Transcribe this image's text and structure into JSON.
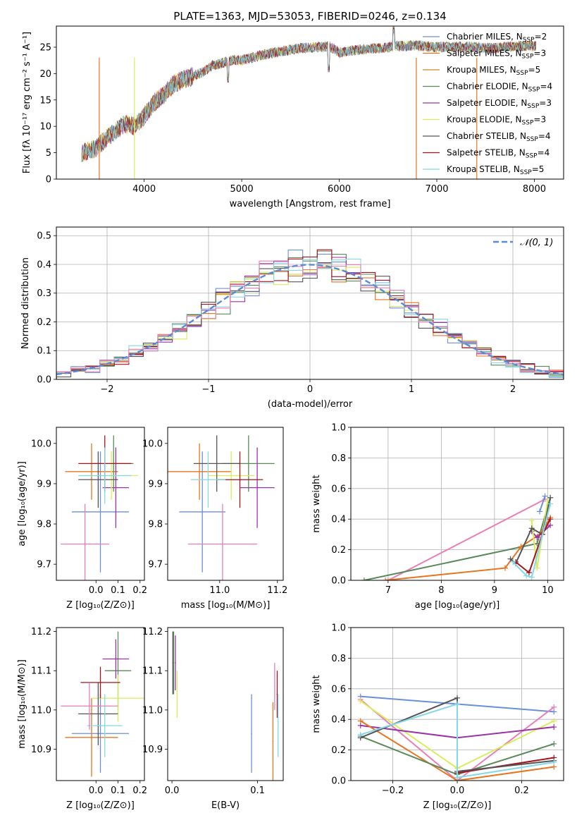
{
  "figure": {
    "title": "PLATE=1363, MJD=53053, FIBERID=0246, z=0.134"
  },
  "colors": {
    "Chabrier MILES": "#6a8fdb",
    "Salpeter MILES": "#e8741e",
    "Kroupa MILES": "#c98a2a",
    "Chabrier ELODIE": "#5a8a5a",
    "Salpeter ELODIE": "#9a35a8",
    "Kroupa ELODIE": "#d9ec5a",
    "Chabrier STELIB": "#555555",
    "Salpeter STELIB": "#a5141d",
    "Kroupa STELIB": "#84d8e6",
    "pink_series": "#e87fb8",
    "gaussian": "#5b8bd6"
  },
  "chart_data": [
    {
      "id": "spectrum",
      "type": "line",
      "title": "PLATE=1363, MJD=53053, FIBERID=0246, z=0.134",
      "xlabel": "wavelength [Angstrom, rest frame]",
      "ylabel": "Flux [fλ 10⁻¹⁷ erg cm⁻² s⁻¹ A⁻¹]",
      "xlim": [
        3100,
        8300
      ],
      "ylim": [
        0,
        29
      ],
      "xticks": [
        4000,
        5000,
        6000,
        7000,
        8000
      ],
      "yticks": [
        0,
        5,
        10,
        15,
        20,
        25
      ],
      "legend_position": "top-right",
      "continuum": {
        "x": [
          3360,
          3500,
          3600,
          3700,
          3800,
          3900,
          4000,
          4100,
          4200,
          4300,
          4400,
          4500,
          4600,
          4700,
          4800,
          4900,
          5000,
          5200,
          5400,
          5600,
          5800,
          5900,
          6000,
          6200,
          6400,
          6600,
          6800,
          7000,
          7200,
          7400,
          7600,
          7800,
          8000
        ],
        "y": [
          5.0,
          5.8,
          7.5,
          9.0,
          10.5,
          10.0,
          12.0,
          14.5,
          16.0,
          18.0,
          18.8,
          19.5,
          20.3,
          21.5,
          22.0,
          22.5,
          22.5,
          23.5,
          24.2,
          24.8,
          25.0,
          25.2,
          24.0,
          24.5,
          24.8,
          25.2,
          25.3,
          25.0,
          25.1,
          25.0,
          24.8,
          25.2,
          25.2
        ]
      },
      "series": [
        {
          "name": "Chabrier MILES, N_SSP=2",
          "label_main": "Chabrier MILES, N",
          "label_sub": "SSP",
          "label_end": "=2",
          "color": "#6a8fdb"
        },
        {
          "name": "Salpeter MILES, N_SSP=3",
          "label_main": "Salpeter MILES, N",
          "label_sub": "SSP",
          "label_end": "=3",
          "color": "#e8741e"
        },
        {
          "name": "Kroupa MILES, N_SSP=5",
          "label_main": "Kroupa MILES, N",
          "label_sub": "SSP",
          "label_end": "=5",
          "color": "#c98a2a"
        },
        {
          "name": "Chabrier ELODIE, N_SSP=4",
          "label_main": "Chabrier ELODIE, N",
          "label_sub": "SSP",
          "label_end": "=4",
          "color": "#5a8a5a"
        },
        {
          "name": "Salpeter ELODIE, N_SSP=3",
          "label_main": "Salpeter ELODIE, N",
          "label_sub": "SSP",
          "label_end": "=3",
          "color": "#9a35a8"
        },
        {
          "name": "Kroupa ELODIE, N_SSP=3",
          "label_main": "Kroupa ELODIE, N",
          "label_sub": "SSP",
          "label_end": "=3",
          "color": "#d9ec5a"
        },
        {
          "name": "Chabrier STELIB, N_SSP=4",
          "label_main": "Chabrier STELIB, N",
          "label_sub": "SSP",
          "label_end": "=4",
          "color": "#555555"
        },
        {
          "name": "Salpeter STELIB, N_SSP=4",
          "label_main": "Salpeter STELIB, N",
          "label_sub": "SSP",
          "label_end": "=4",
          "color": "#a5141d"
        },
        {
          "name": "Kroupa STELIB, N_SSP=5",
          "label_main": "Kroupa STELIB, N",
          "label_sub": "SSP",
          "label_end": "=5",
          "color": "#84d8e6"
        }
      ],
      "range_edges": [
        {
          "name": "Salpeter MILES",
          "x": 3540,
          "color": "#e8741e"
        },
        {
          "name": "Kroupa ELODIE",
          "x": 3900,
          "color": "#d9ec5a"
        },
        {
          "name": "Salpeter MILES",
          "x": 6790,
          "color": "#e8741e"
        },
        {
          "name": "Salpeter MILES",
          "x": 7410,
          "color": "#e8741e"
        }
      ]
    },
    {
      "id": "residuals",
      "type": "histogram",
      "xlabel": "(data-model)/error",
      "ylabel": "Normed distribution",
      "xlim": [
        -2.5,
        2.5
      ],
      "ylim": [
        0,
        0.53
      ],
      "xticks": [
        -2,
        -1,
        0,
        1,
        2
      ],
      "yticks": [
        0.0,
        0.1,
        0.2,
        0.3,
        0.4,
        0.5
      ],
      "grid": true,
      "legend_position": "top-right",
      "legend_label": "𝒩(0, 1)",
      "gaussian": {
        "mean": 0,
        "sigma": 1,
        "color": "#5b8bd6"
      },
      "bin_edges_range": [
        -2.5,
        2.5
      ],
      "n_bins": 35,
      "series_colors": [
        "#6a8fdb",
        "#e8741e",
        "#5a8a5a",
        "#9a35a8",
        "#d9ec5a",
        "#555555",
        "#a5141d",
        "#84d8e6",
        "#e87fb8"
      ]
    },
    {
      "id": "z_age",
      "type": "errorbar",
      "xlabel": "Z [log₁₀(Z/Z⊙)]",
      "ylabel": "age  [log₁₀(age/yr)]",
      "xlim": [
        -0.18,
        0.22
      ],
      "ylim": [
        9.66,
        10.04
      ],
      "xticks": [
        0.0,
        0.1,
        0.2
      ],
      "yticks": [
        9.7,
        9.8,
        9.9,
        10.0
      ],
      "points": [
        {
          "x": 0.02,
          "xerr": 0.13,
          "y": 9.83,
          "yerr": 0.15,
          "color": "#6a8fdb"
        },
        {
          "x": -0.02,
          "xerr": 0.12,
          "y": 9.93,
          "yerr": 0.07,
          "color": "#e8741e"
        },
        {
          "x": 0.08,
          "xerr": 0.09,
          "y": 9.95,
          "yerr": 0.07,
          "color": "#5a8a5a"
        },
        {
          "x": 0.09,
          "xerr": 0.06,
          "y": 9.89,
          "yerr": 0.1,
          "color": "#9a35a8"
        },
        {
          "x": 0.07,
          "xerr": 0.12,
          "y": 9.92,
          "yerr": 0.06,
          "color": "#d9ec5a"
        },
        {
          "x": 0.01,
          "xerr": 0.09,
          "y": 9.91,
          "yerr": 0.07,
          "color": "#555555"
        },
        {
          "x": 0.04,
          "xerr": 0.12,
          "y": 9.95,
          "yerr": 0.07,
          "color": "#a5141d"
        },
        {
          "x": 0.04,
          "xerr": 0.12,
          "y": 9.92,
          "yerr": 0.07,
          "color": "#84d8e6"
        },
        {
          "x": -0.05,
          "xerr": 0.11,
          "y": 9.75,
          "yerr": 0.1,
          "color": "#e87fb8"
        }
      ]
    },
    {
      "id": "mass_age",
      "type": "errorbar",
      "xlabel": "mass [log₁₀(M/M⊙)]",
      "xlim": [
        10.82,
        11.22
      ],
      "ylim": [
        9.66,
        10.04
      ],
      "xticks": [
        11.0,
        11.2
      ],
      "xticklabels": [
        "11.0",
        "11.2"
      ],
      "yticks": [
        9.7,
        9.8,
        9.9,
        10.0
      ],
      "points": [
        {
          "x": 10.94,
          "xerr": 0.08,
          "y": 9.83,
          "yerr": 0.15,
          "color": "#6a8fdb"
        },
        {
          "x": 10.93,
          "xerr": 0.11,
          "y": 9.93,
          "yerr": 0.07,
          "color": "#e8741e"
        },
        {
          "x": 11.1,
          "xerr": 0.09,
          "y": 9.95,
          "yerr": 0.07,
          "color": "#5a8a5a"
        },
        {
          "x": 11.13,
          "xerr": 0.06,
          "y": 9.89,
          "yerr": 0.1,
          "color": "#9a35a8"
        },
        {
          "x": 11.04,
          "xerr": 0.08,
          "y": 9.92,
          "yerr": 0.06,
          "color": "#d9ec5a"
        },
        {
          "x": 10.99,
          "xerr": 0.08,
          "y": 9.95,
          "yerr": 0.07,
          "color": "#555555"
        },
        {
          "x": 11.07,
          "xerr": 0.08,
          "y": 9.91,
          "yerr": 0.07,
          "color": "#a5141d"
        },
        {
          "x": 10.96,
          "xerr": 0.06,
          "y": 9.91,
          "yerr": 0.07,
          "color": "#84d8e6"
        },
        {
          "x": 11.01,
          "xerr": 0.12,
          "y": 9.75,
          "yerr": 0.1,
          "color": "#e87fb8"
        }
      ]
    },
    {
      "id": "weights_vs_age",
      "type": "line",
      "xlabel": "age  [log₁₀(age/yr)]",
      "ylabel": "mass weight",
      "xlim": [
        6.3,
        10.3
      ],
      "ylim": [
        0,
        1.0
      ],
      "xticks": [
        7,
        8,
        9,
        10
      ],
      "yticks": [
        0.0,
        0.2,
        0.4,
        0.6,
        0.8,
        1.0
      ],
      "grid": true,
      "series": [
        {
          "color": "#e87fb8",
          "x": [
            7.0,
            9.95
          ],
          "y": [
            0.0,
            0.53
          ]
        },
        {
          "color": "#5a8a5a",
          "x": [
            6.55,
            9.8,
            10.05
          ],
          "y": [
            0.0,
            0.24,
            0.54
          ]
        },
        {
          "color": "#e8741e",
          "x": [
            6.95,
            9.2,
            9.5,
            9.85,
            10.05
          ],
          "y": [
            0.0,
            0.08,
            0.22,
            0.3,
            0.41
          ]
        },
        {
          "color": "#6a8fdb",
          "x": [
            9.85,
            9.95
          ],
          "y": [
            0.45,
            0.55
          ]
        },
        {
          "color": "#9a35a8",
          "x": [
            9.7,
            9.8,
            10.05
          ],
          "y": [
            0.32,
            0.28,
            0.36
          ]
        },
        {
          "color": "#d9ec5a",
          "x": [
            9.7,
            9.8,
            10.0
          ],
          "y": [
            0.39,
            0.08,
            0.52
          ]
        },
        {
          "color": "#555555",
          "x": [
            9.3,
            9.4,
            9.7,
            9.9,
            10.05
          ],
          "y": [
            0.14,
            0.11,
            0.34,
            0.3,
            0.54
          ]
        },
        {
          "color": "#a5141d",
          "x": [
            9.4,
            9.65,
            9.9,
            10.05
          ],
          "y": [
            0.12,
            0.05,
            0.3,
            0.4
          ]
        },
        {
          "color": "#84d8e6",
          "x": [
            9.35,
            9.6,
            9.7,
            10.05
          ],
          "y": [
            0.12,
            0.03,
            0.02,
            0.5
          ]
        }
      ]
    },
    {
      "id": "z_mass",
      "type": "errorbar",
      "xlabel": "Z [log₁₀(Z/Z⊙)]",
      "ylabel": "mass [log₁₀(M/M⊙)]",
      "xlim": [
        -0.18,
        0.22
      ],
      "ylim": [
        10.82,
        11.21
      ],
      "xticks": [
        0.0,
        0.1,
        0.2
      ],
      "yticks": [
        10.9,
        11.0,
        11.1,
        11.2
      ],
      "points": [
        {
          "x": 0.02,
          "xerr": 0.13,
          "y": 10.94,
          "yerr": 0.1,
          "color": "#6a8fdb"
        },
        {
          "x": -0.02,
          "xerr": 0.12,
          "y": 10.93,
          "yerr": 0.1,
          "color": "#e8741e"
        },
        {
          "x": 0.1,
          "xerr": 0.06,
          "y": 11.1,
          "yerr": 0.1,
          "color": "#5a8a5a"
        },
        {
          "x": 0.09,
          "xerr": 0.06,
          "y": 11.13,
          "yerr": 0.05,
          "color": "#9a35a8"
        },
        {
          "x": 0.1,
          "xerr": 0.12,
          "y": 11.03,
          "yerr": 0.06,
          "color": "#d9ec5a"
        },
        {
          "x": 0.01,
          "xerr": 0.09,
          "y": 10.99,
          "yerr": 0.08,
          "color": "#555555"
        },
        {
          "x": 0.02,
          "xerr": 0.09,
          "y": 11.07,
          "yerr": 0.04,
          "color": "#a5141d"
        },
        {
          "x": 0.04,
          "xerr": 0.08,
          "y": 10.96,
          "yerr": 0.08,
          "color": "#84d8e6"
        },
        {
          "x": -0.03,
          "xerr": 0.13,
          "y": 11.01,
          "yerr": 0.06,
          "color": "#e87fb8"
        }
      ]
    },
    {
      "id": "ebv_mass",
      "type": "errorbar",
      "xlabel": "E(B-V)",
      "xlim": [
        -0.005,
        0.13
      ],
      "ylim": [
        10.82,
        11.21
      ],
      "xticks": [
        0.0,
        0.1
      ],
      "yticks": [
        10.9,
        11.0,
        11.1,
        11.2
      ],
      "points": [
        {
          "x": 0.093,
          "y": 10.94,
          "yerr": 0.1,
          "color": "#6a8fdb"
        },
        {
          "x": 0.118,
          "y": 10.92,
          "yerr": 0.1,
          "color": "#e8741e"
        },
        {
          "x": 0.002,
          "y": 11.12,
          "yerr": 0.08,
          "color": "#5a8a5a"
        },
        {
          "x": 0.004,
          "y": 11.12,
          "yerr": 0.07,
          "color": "#9a35a8"
        },
        {
          "x": 0.006,
          "y": 11.04,
          "yerr": 0.06,
          "color": "#d9ec5a"
        },
        {
          "x": 0.001,
          "y": 11.12,
          "yerr": 0.08,
          "color": "#555555"
        },
        {
          "x": 0.123,
          "y": 11.04,
          "yerr": 0.06,
          "color": "#a5141d"
        },
        {
          "x": 0.124,
          "y": 10.96,
          "yerr": 0.08,
          "color": "#84d8e6"
        },
        {
          "x": 0.12,
          "y": 11.06,
          "yerr": 0.06,
          "color": "#e87fb8"
        }
      ]
    },
    {
      "id": "weights_vs_z",
      "type": "line",
      "xlabel": "Z [log₁₀(Z/Z⊙)]",
      "ylabel": "mass weight",
      "xlim": [
        -0.33,
        0.33
      ],
      "ylim": [
        0,
        1.0
      ],
      "xticks": [
        -0.2,
        0.0,
        0.2
      ],
      "xticklabels": [
        "−0.2",
        "0.0",
        "0.2"
      ],
      "yticks": [
        0.0,
        0.2,
        0.4,
        0.6,
        0.8,
        1.0
      ],
      "grid": true,
      "series": [
        {
          "color": "#6a8fdb",
          "x": [
            -0.3,
            0.0,
            0.3
          ],
          "y": [
            0.55,
            0.5,
            0.45
          ]
        },
        {
          "color": "#e87fb8",
          "x": [
            -0.3,
            0.0,
            0.3
          ],
          "y": [
            0.53,
            0.0,
            0.48
          ]
        },
        {
          "color": "#d9ec5a",
          "x": [
            -0.3,
            0.0,
            0.3
          ],
          "y": [
            0.52,
            0.08,
            0.39
          ]
        },
        {
          "color": "#9a35a8",
          "x": [
            -0.3,
            0.0,
            0.3
          ],
          "y": [
            0.36,
            0.28,
            0.35
          ]
        },
        {
          "color": "#e8741e",
          "x": [
            -0.3,
            0.0,
            0.3
          ],
          "y": [
            0.39,
            0.0,
            0.09
          ]
        },
        {
          "color": "#5a8a5a",
          "x": [
            -0.3,
            0.0,
            0.3
          ],
          "y": [
            0.29,
            0.04,
            0.24
          ]
        },
        {
          "color": "#a5141d",
          "x": [
            0.0,
            0.3
          ],
          "y": [
            0.05,
            0.15
          ]
        },
        {
          "color": "#555555",
          "x": [
            -0.3,
            0.0,
            0.0,
            0.3
          ],
          "y": [
            0.28,
            0.54,
            0.06,
            0.13
          ]
        },
        {
          "color": "#84d8e6",
          "x": [
            -0.3,
            0.0,
            0.0,
            0.3
          ],
          "y": [
            0.3,
            0.5,
            0.02,
            0.12
          ]
        }
      ]
    }
  ]
}
